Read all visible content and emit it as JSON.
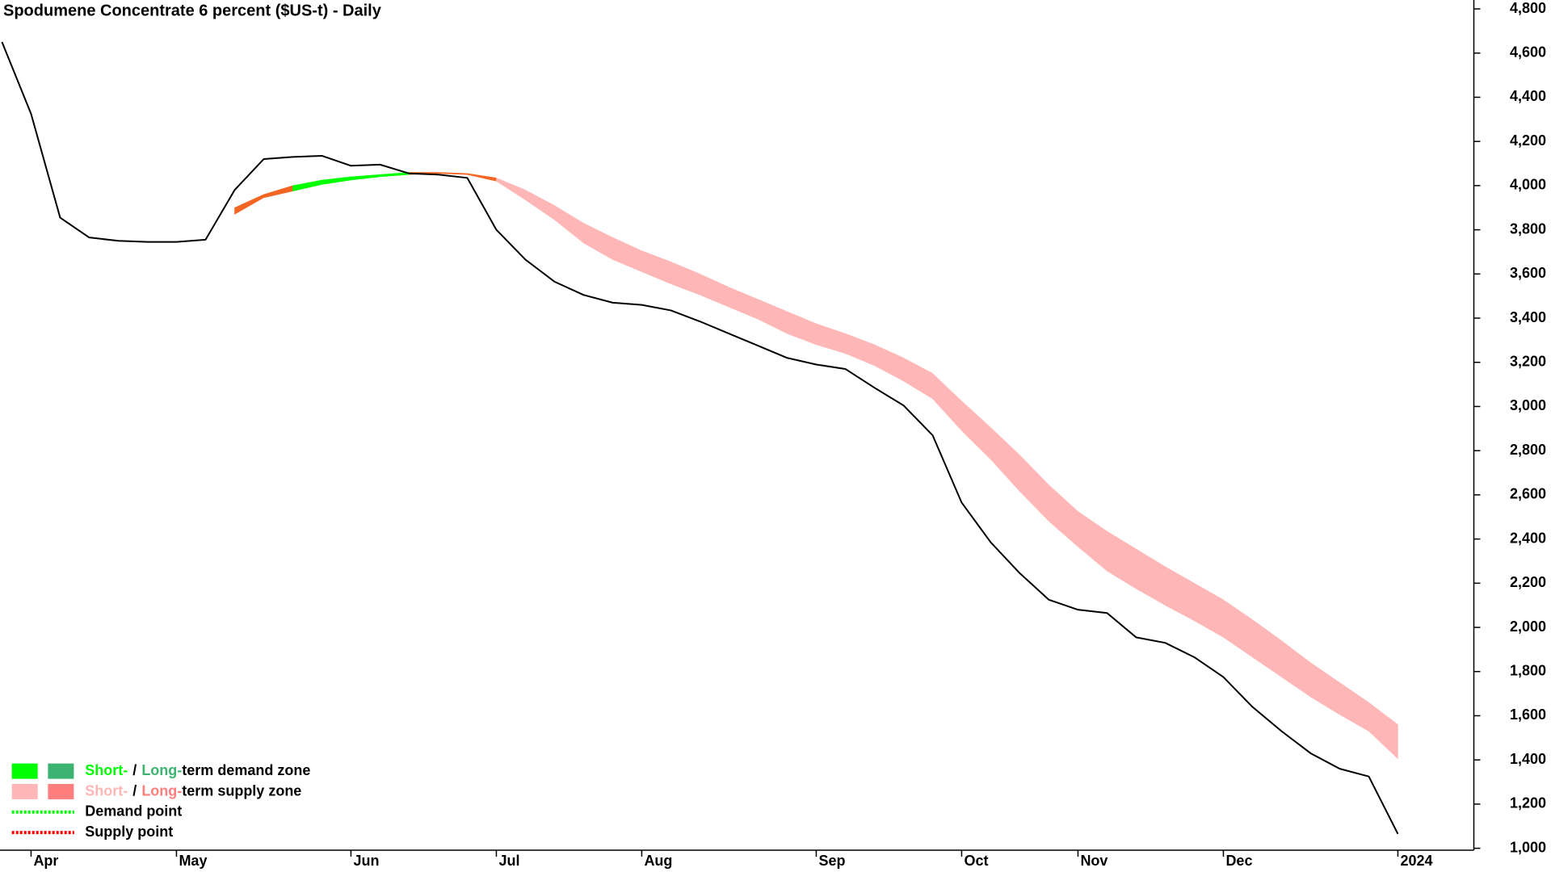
{
  "chart_data": {
    "type": "line",
    "title": "Spodumene Concentrate 6 percent ($US-t) - Daily",
    "categories": [
      null,
      "Apr",
      null,
      null,
      null,
      null,
      "May",
      null,
      null,
      null,
      null,
      null,
      "Jun",
      null,
      null,
      null,
      null,
      "Jul",
      null,
      null,
      null,
      null,
      "Aug",
      null,
      null,
      null,
      null,
      null,
      "Sep",
      null,
      null,
      null,
      null,
      "Oct",
      null,
      null,
      null,
      "Nov",
      null,
      null,
      null,
      null,
      "Dec",
      null,
      null,
      null,
      null,
      null,
      "2024"
    ],
    "series": [
      {
        "color": "#000000",
        "values": [
          4650,
          4325,
          3855,
          3765,
          3750,
          3745,
          3745,
          3755,
          3980,
          4120,
          4130,
          4135,
          4090,
          4095,
          4055,
          4050,
          4035,
          3800,
          3665,
          3565,
          3505,
          3470,
          3460,
          3435,
          3385,
          3330,
          3275,
          3220,
          3190,
          3170,
          3085,
          3005,
          2870,
          2565,
          2385,
          2245,
          2125,
          2080,
          2065,
          1955,
          1930,
          1865,
          1775,
          1640,
          1530,
          1430,
          1360,
          1325,
          1065
        ]
      }
    ],
    "zones": [
      {
        "color": "#f26522",
        "upper": [
          null,
          null,
          null,
          null,
          null,
          null,
          null,
          null,
          3900,
          3960,
          4000,
          null,
          null,
          null,
          4060,
          4060,
          4055,
          4035,
          null,
          null,
          null,
          null,
          null,
          null,
          null,
          null,
          null,
          null,
          null,
          null,
          null,
          null,
          null,
          null,
          null,
          null,
          null,
          null,
          null,
          null,
          null,
          null,
          null,
          null,
          null,
          null,
          null,
          null,
          null
        ],
        "lower": [
          null,
          null,
          null,
          null,
          null,
          null,
          null,
          null,
          3870,
          3945,
          3975,
          null,
          null,
          null,
          4050,
          4055,
          4050,
          4020,
          null,
          null,
          null,
          null,
          null,
          null,
          null,
          null,
          null,
          null,
          null,
          null,
          null,
          null,
          null,
          null,
          null,
          null,
          null,
          null,
          null,
          null,
          null,
          null,
          null,
          null,
          null,
          null,
          null,
          null,
          null
        ]
      },
      {
        "color": "#00ff00",
        "upper": [
          null,
          null,
          null,
          null,
          null,
          null,
          null,
          null,
          null,
          null,
          4000,
          4025,
          4040,
          4050,
          4060,
          null,
          null,
          null,
          null,
          null,
          null,
          null,
          null,
          null,
          null,
          null,
          null,
          null,
          null,
          null,
          null,
          null,
          null,
          null,
          null,
          null,
          null,
          null,
          null,
          null,
          null,
          null,
          null,
          null,
          null,
          null,
          null,
          null,
          null
        ],
        "lower": [
          null,
          null,
          null,
          null,
          null,
          null,
          null,
          null,
          null,
          null,
          3975,
          4005,
          4025,
          4040,
          4050,
          null,
          null,
          null,
          null,
          null,
          null,
          null,
          null,
          null,
          null,
          null,
          null,
          null,
          null,
          null,
          null,
          null,
          null,
          null,
          null,
          null,
          null,
          null,
          null,
          null,
          null,
          null,
          null,
          null,
          null,
          null,
          null,
          null,
          null
        ]
      },
      {
        "color": "#ffb6b6",
        "upper": [
          null,
          null,
          null,
          null,
          null,
          null,
          null,
          null,
          null,
          null,
          null,
          null,
          null,
          null,
          null,
          null,
          null,
          4035,
          3980,
          3910,
          3830,
          3765,
          3705,
          3655,
          3600,
          3540,
          3485,
          3430,
          3375,
          3330,
          3280,
          3220,
          3150,
          3025,
          2905,
          2780,
          2645,
          2525,
          2435,
          2355,
          2275,
          2200,
          2125,
          2035,
          1940,
          1840,
          1750,
          1660,
          1560
        ],
        "lower": [
          null,
          null,
          null,
          null,
          null,
          null,
          null,
          null,
          null,
          null,
          null,
          null,
          null,
          null,
          null,
          null,
          null,
          4020,
          3935,
          3845,
          3740,
          3665,
          3610,
          3555,
          3505,
          3450,
          3395,
          3330,
          3280,
          3240,
          3185,
          3115,
          3035,
          2890,
          2760,
          2615,
          2480,
          2365,
          2255,
          2175,
          2100,
          2030,
          1955,
          1865,
          1775,
          1685,
          1605,
          1530,
          1405
        ]
      }
    ],
    "ylim": [
      1000,
      4800
    ],
    "yticks": [
      {
        "value": 1000,
        "label": "1,000"
      },
      {
        "value": 1200,
        "label": "1,200"
      },
      {
        "value": 1400,
        "label": "1,400"
      },
      {
        "value": 1600,
        "label": "1,600"
      },
      {
        "value": 1800,
        "label": "1,800"
      },
      {
        "value": 2000,
        "label": "2,000"
      },
      {
        "value": 2200,
        "label": "2,200"
      },
      {
        "value": 2400,
        "label": "2,400"
      },
      {
        "value": 2600,
        "label": "2,600"
      },
      {
        "value": 2800,
        "label": "2,800"
      },
      {
        "value": 3000,
        "label": "3,000"
      },
      {
        "value": 3200,
        "label": "3,200"
      },
      {
        "value": 3400,
        "label": "3,400"
      },
      {
        "value": 3600,
        "label": "3,600"
      },
      {
        "value": 3800,
        "label": "3,800"
      },
      {
        "value": 4000,
        "label": "4,000"
      },
      {
        "value": 4200,
        "label": "4,200"
      },
      {
        "value": 4400,
        "label": "4,400"
      },
      {
        "value": 4600,
        "label": "4,600"
      },
      {
        "value": 4800,
        "label": "4,800"
      }
    ],
    "legend": [
      {
        "swatches": [
          "#00ff00",
          "#3cb371"
        ],
        "short": "Short-",
        "sep": "/",
        "long": "Long-",
        "rest": "term demand zone"
      },
      {
        "swatches": [
          "#ffb6b6",
          "#ff7f7f"
        ],
        "short": "Short-",
        "sep": "/",
        "long": "Long-",
        "rest": "term supply zone"
      },
      {
        "dotted": "#00ff00",
        "text": "Demand point"
      },
      {
        "dotted": "#ff0000",
        "text": "Supply point"
      }
    ]
  }
}
